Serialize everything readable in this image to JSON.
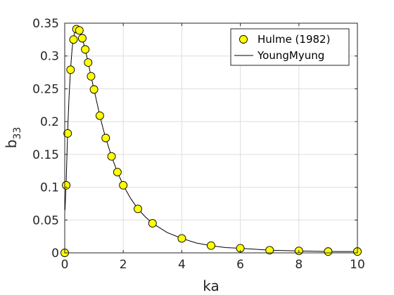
{
  "chart_data": {
    "type": "scatter",
    "xlabel": "ka",
    "ylabel_base": "b",
    "ylabel_sub": "33",
    "xlim": [
      0,
      10
    ],
    "ylim": [
      0,
      0.35
    ],
    "x_ticks": [
      0,
      2,
      4,
      6,
      8,
      10
    ],
    "x_tick_labels": [
      "0",
      "2",
      "4",
      "6",
      "8",
      "10"
    ],
    "y_ticks": [
      0,
      0.05,
      0.1,
      0.15,
      0.2,
      0.25,
      0.3,
      0.35
    ],
    "y_tick_labels": [
      "0",
      "0.05",
      "0.1",
      "0.15",
      "0.2",
      "0.25",
      "0.3",
      "0.35"
    ],
    "grid": true,
    "legend_position": "top-right",
    "series": [
      {
        "name": "Hulme (1982)",
        "kind": "markers",
        "marker": "circle",
        "color": "#ffff00",
        "edge_color": "#000000",
        "x": [
          0,
          0.05,
          0.1,
          0.2,
          0.3,
          0.4,
          0.5,
          0.6,
          0.7,
          0.8,
          0.9,
          1.0,
          1.2,
          1.4,
          1.6,
          1.8,
          2.0,
          2.5,
          3.0,
          4.0,
          5.0,
          6.0,
          7.0,
          8.0,
          9.0,
          10.0
        ],
        "y": [
          0,
          0.103,
          0.182,
          0.279,
          0.325,
          0.341,
          0.339,
          0.327,
          0.31,
          0.29,
          0.269,
          0.249,
          0.209,
          0.175,
          0.147,
          0.123,
          0.103,
          0.067,
          0.045,
          0.022,
          0.011,
          0.007,
          0.004,
          0.003,
          0.002,
          0.002
        ]
      },
      {
        "name": "YoungMyung",
        "kind": "line",
        "color": "#000000",
        "x": [
          0.01,
          0.05,
          0.1,
          0.15,
          0.2,
          0.25,
          0.3,
          0.35,
          0.4,
          0.45,
          0.5,
          0.55,
          0.6,
          0.7,
          0.8,
          0.9,
          1.0,
          1.1,
          1.2,
          1.3,
          1.4,
          1.6,
          1.8,
          2.0,
          2.25,
          2.5,
          2.75,
          3.0,
          3.5,
          4.0,
          4.5,
          5.0,
          5.5,
          6.0,
          7.0,
          8.0,
          9.0,
          10.0
        ],
        "y": [
          0.065,
          0.11,
          0.185,
          0.24,
          0.28,
          0.31,
          0.328,
          0.338,
          0.342,
          0.341,
          0.338,
          0.333,
          0.327,
          0.31,
          0.29,
          0.269,
          0.249,
          0.229,
          0.209,
          0.191,
          0.175,
          0.147,
          0.123,
          0.103,
          0.083,
          0.067,
          0.055,
          0.045,
          0.031,
          0.022,
          0.015,
          0.011,
          0.008,
          0.007,
          0.004,
          0.003,
          0.002,
          0.002
        ]
      }
    ]
  }
}
